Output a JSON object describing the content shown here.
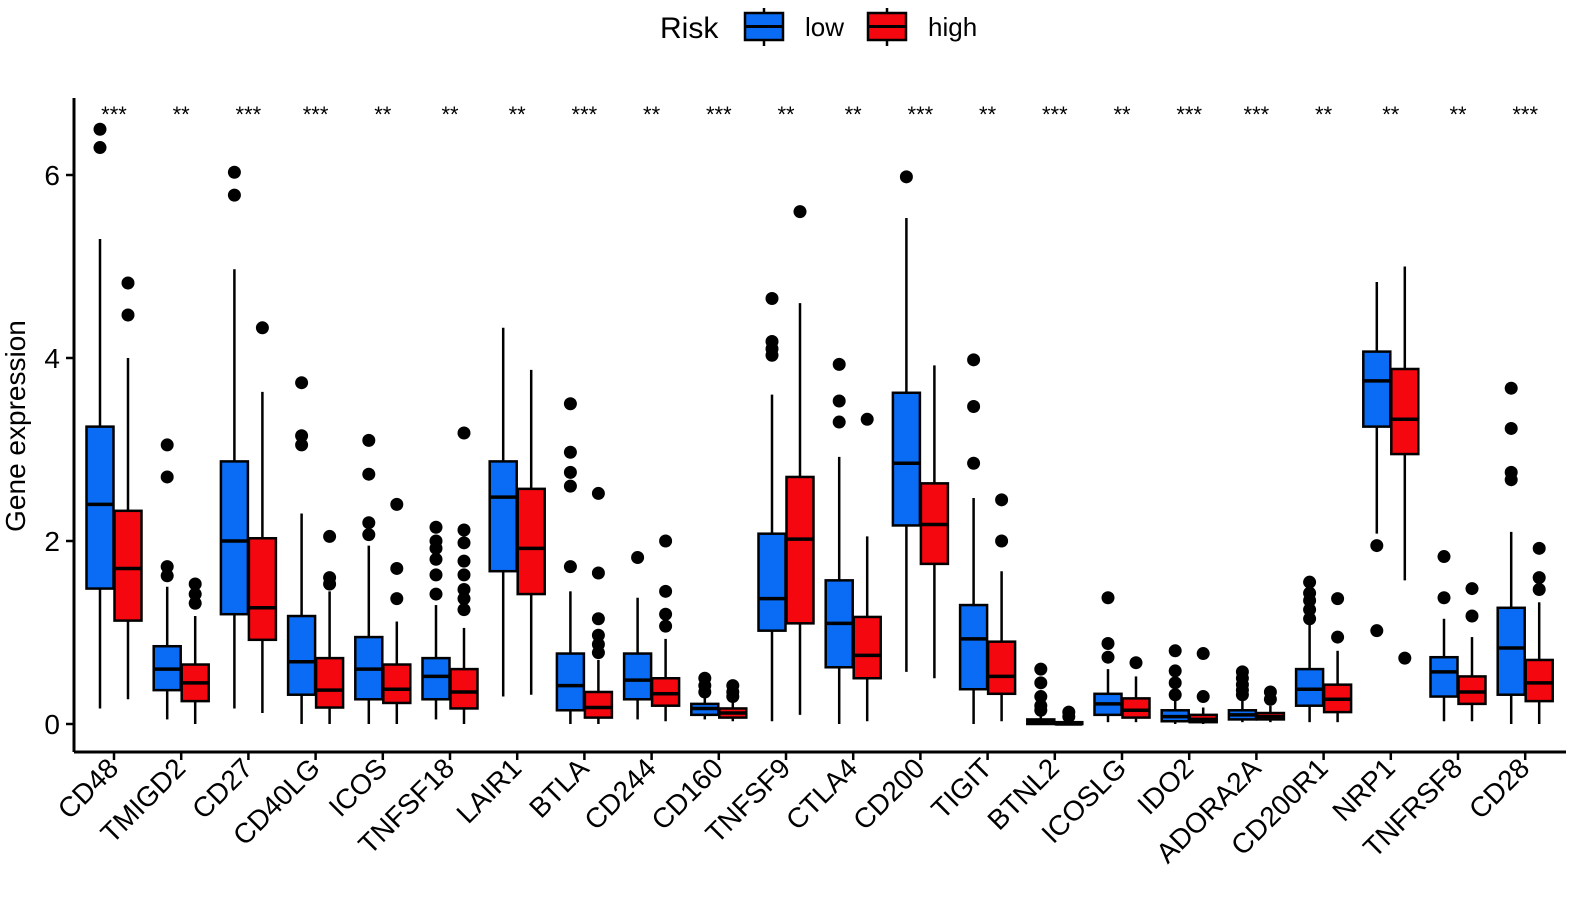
{
  "chart_data": {
    "type": "boxplot",
    "title": "",
    "xlabel": "",
    "ylabel": "Gene expression",
    "ylim": [
      -0.35,
      6.8
    ],
    "yticks": [
      0,
      2,
      4,
      6
    ],
    "legend": {
      "title": "Risk",
      "position": "top",
      "entries": [
        {
          "name": "low",
          "color": "#0A6CF5"
        },
        {
          "name": "high",
          "color": "#F5070F"
        }
      ]
    },
    "categories": [
      "CD48",
      "TMIGD2",
      "CD27",
      "CD40LG",
      "ICOS",
      "TNFSF18",
      "LAIR1",
      "BTLA",
      "CD244",
      "CD160",
      "TNFSF9",
      "CTLA4",
      "CD200",
      "TIGIT",
      "BTNL2",
      "ICOSLG",
      "IDO2",
      "ADORA2A",
      "CD200R1",
      "NRP1",
      "TNFRSF8",
      "CD28"
    ],
    "significance": [
      "***",
      "**",
      "***",
      "***",
      "**",
      "**",
      "**",
      "***",
      "**",
      "***",
      "**",
      "**",
      "***",
      "**",
      "***",
      "**",
      "***",
      "***",
      "**",
      "**",
      "**",
      "***"
    ],
    "series": [
      {
        "name": "low",
        "color": "#0A6CF5",
        "boxes": [
          {
            "min": 0.17,
            "q1": 1.48,
            "median": 2.4,
            "q3": 3.25,
            "max": 5.3,
            "outliers": [
              6.5,
              6.3
            ]
          },
          {
            "min": 0.05,
            "q1": 0.37,
            "median": 0.6,
            "q3": 0.85,
            "max": 1.5,
            "outliers": [
              3.05,
              2.7,
              1.72,
              1.62
            ]
          },
          {
            "min": 0.17,
            "q1": 1.2,
            "median": 2.0,
            "q3": 2.87,
            "max": 4.97,
            "outliers": [
              6.03,
              5.78
            ]
          },
          {
            "min": 0.0,
            "q1": 0.32,
            "median": 0.68,
            "q3": 1.18,
            "max": 2.3,
            "outliers": [
              3.73,
              3.15,
              3.05
            ]
          },
          {
            "min": 0.0,
            "q1": 0.27,
            "median": 0.6,
            "q3": 0.95,
            "max": 1.95,
            "outliers": [
              3.1,
              2.73,
              2.2,
              2.07
            ]
          },
          {
            "min": 0.05,
            "q1": 0.27,
            "median": 0.52,
            "q3": 0.72,
            "max": 1.3,
            "outliers": [
              2.15,
              2.0,
              1.92,
              1.8,
              1.63,
              1.42
            ]
          },
          {
            "min": 0.3,
            "q1": 1.67,
            "median": 2.48,
            "q3": 2.87,
            "max": 4.33,
            "outliers": []
          },
          {
            "min": 0.0,
            "q1": 0.15,
            "median": 0.42,
            "q3": 0.77,
            "max": 1.45,
            "outliers": [
              3.5,
              2.97,
              2.75,
              2.6,
              1.72
            ]
          },
          {
            "min": 0.05,
            "q1": 0.27,
            "median": 0.48,
            "q3": 0.77,
            "max": 1.38,
            "outliers": [
              1.82
            ]
          },
          {
            "min": 0.05,
            "q1": 0.1,
            "median": 0.17,
            "q3": 0.22,
            "max": 0.3,
            "outliers": [
              0.5,
              0.42,
              0.35
            ]
          },
          {
            "min": 0.03,
            "q1": 1.02,
            "median": 1.37,
            "q3": 2.08,
            "max": 3.6,
            "outliers": [
              4.65,
              4.18,
              4.1,
              4.03
            ]
          },
          {
            "min": 0.0,
            "q1": 0.62,
            "median": 1.1,
            "q3": 1.57,
            "max": 2.92,
            "outliers": [
              3.93,
              3.53,
              3.3
            ]
          },
          {
            "min": 0.57,
            "q1": 2.17,
            "median": 2.85,
            "q3": 3.62,
            "max": 5.53,
            "outliers": [
              5.98
            ]
          },
          {
            "min": 0.0,
            "q1": 0.38,
            "median": 0.93,
            "q3": 1.3,
            "max": 2.47,
            "outliers": [
              3.98,
              3.47,
              2.85
            ]
          },
          {
            "min": 0.0,
            "q1": 0.0,
            "median": 0.02,
            "q3": 0.05,
            "max": 0.1,
            "outliers": [
              0.6,
              0.45,
              0.3,
              0.2,
              0.15
            ]
          },
          {
            "min": 0.02,
            "q1": 0.1,
            "median": 0.22,
            "q3": 0.33,
            "max": 0.6,
            "outliers": [
              1.38,
              0.88,
              0.73
            ]
          },
          {
            "min": 0.0,
            "q1": 0.03,
            "median": 0.08,
            "q3": 0.15,
            "max": 0.27,
            "outliers": [
              0.8,
              0.58,
              0.45,
              0.32
            ]
          },
          {
            "min": 0.02,
            "q1": 0.05,
            "median": 0.1,
            "q3": 0.15,
            "max": 0.28,
            "outliers": [
              0.57,
              0.5,
              0.43,
              0.37,
              0.32
            ]
          },
          {
            "min": 0.02,
            "q1": 0.2,
            "median": 0.38,
            "q3": 0.6,
            "max": 1.1,
            "outliers": [
              1.55,
              1.43,
              1.35,
              1.25,
              1.15
            ]
          },
          {
            "min": 2.08,
            "q1": 3.25,
            "median": 3.75,
            "q3": 4.07,
            "max": 4.83,
            "outliers": [
              1.95,
              1.02
            ]
          },
          {
            "min": 0.03,
            "q1": 0.3,
            "median": 0.57,
            "q3": 0.73,
            "max": 1.15,
            "outliers": [
              1.83,
              1.38
            ]
          },
          {
            "min": 0.0,
            "q1": 0.32,
            "median": 0.83,
            "q3": 1.27,
            "max": 2.1,
            "outliers": [
              3.67,
              3.23,
              2.75,
              2.67
            ]
          }
        ]
      },
      {
        "name": "high",
        "color": "#F5070F",
        "boxes": [
          {
            "min": 0.27,
            "q1": 1.13,
            "median": 1.7,
            "q3": 2.33,
            "max": 4.0,
            "outliers": [
              4.82,
              4.47
            ]
          },
          {
            "min": 0.0,
            "q1": 0.25,
            "median": 0.45,
            "q3": 0.65,
            "max": 1.18,
            "outliers": [
              1.53,
              1.42,
              1.32
            ]
          },
          {
            "min": 0.12,
            "q1": 0.92,
            "median": 1.27,
            "q3": 2.03,
            "max": 3.63,
            "outliers": [
              4.33
            ]
          },
          {
            "min": 0.0,
            "q1": 0.18,
            "median": 0.37,
            "q3": 0.72,
            "max": 1.45,
            "outliers": [
              2.05,
              1.6,
              1.53
            ]
          },
          {
            "min": 0.0,
            "q1": 0.23,
            "median": 0.38,
            "q3": 0.65,
            "max": 1.12,
            "outliers": [
              2.4,
              1.7,
              1.37
            ]
          },
          {
            "min": 0.0,
            "q1": 0.17,
            "median": 0.35,
            "q3": 0.6,
            "max": 1.05,
            "outliers": [
              2.12,
              1.98,
              1.78,
              1.63,
              1.47,
              1.37,
              1.25,
              3.18
            ]
          },
          {
            "min": 0.32,
            "q1": 1.42,
            "median": 1.92,
            "q3": 2.57,
            "max": 3.87,
            "outliers": []
          },
          {
            "min": 0.0,
            "q1": 0.07,
            "median": 0.18,
            "q3": 0.35,
            "max": 0.7,
            "outliers": [
              2.52,
              1.65,
              1.15,
              0.97,
              0.87,
              0.78
            ]
          },
          {
            "min": 0.03,
            "q1": 0.2,
            "median": 0.33,
            "q3": 0.5,
            "max": 0.93,
            "outliers": [
              2.0,
              1.45,
              1.2,
              1.07
            ]
          },
          {
            "min": 0.03,
            "q1": 0.07,
            "median": 0.12,
            "q3": 0.17,
            "max": 0.25,
            "outliers": [
              0.42,
              0.35,
              0.3
            ]
          },
          {
            "min": 0.1,
            "q1": 1.1,
            "median": 2.02,
            "q3": 2.7,
            "max": 4.6,
            "outliers": [
              5.6
            ]
          },
          {
            "min": 0.03,
            "q1": 0.5,
            "median": 0.75,
            "q3": 1.17,
            "max": 2.05,
            "outliers": [
              3.33
            ]
          },
          {
            "min": 0.5,
            "q1": 1.75,
            "median": 2.18,
            "q3": 2.63,
            "max": 3.92,
            "outliers": []
          },
          {
            "min": 0.03,
            "q1": 0.33,
            "median": 0.52,
            "q3": 0.9,
            "max": 1.67,
            "outliers": [
              2.45,
              2.0
            ]
          },
          {
            "min": 0.0,
            "q1": 0.0,
            "median": 0.0,
            "q3": 0.02,
            "max": 0.05,
            "outliers": [
              0.13,
              0.08
            ]
          },
          {
            "min": 0.02,
            "q1": 0.07,
            "median": 0.15,
            "q3": 0.28,
            "max": 0.52,
            "outliers": [
              0.67
            ]
          },
          {
            "min": 0.0,
            "q1": 0.02,
            "median": 0.05,
            "q3": 0.1,
            "max": 0.18,
            "outliers": [
              0.77,
              0.3
            ]
          },
          {
            "min": 0.02,
            "q1": 0.05,
            "median": 0.08,
            "q3": 0.12,
            "max": 0.2,
            "outliers": [
              0.35,
              0.27
            ]
          },
          {
            "min": 0.02,
            "q1": 0.13,
            "median": 0.27,
            "q3": 0.43,
            "max": 0.8,
            "outliers": [
              1.37,
              0.95
            ]
          },
          {
            "min": 1.57,
            "q1": 2.95,
            "median": 3.33,
            "q3": 3.88,
            "max": 5.0,
            "outliers": [
              0.72
            ]
          },
          {
            "min": 0.03,
            "q1": 0.22,
            "median": 0.35,
            "q3": 0.52,
            "max": 0.95,
            "outliers": [
              1.48,
              1.18
            ]
          },
          {
            "min": 0.0,
            "q1": 0.25,
            "median": 0.45,
            "q3": 0.7,
            "max": 1.33,
            "outliers": [
              1.92,
              1.6,
              1.47
            ]
          }
        ]
      }
    ]
  }
}
